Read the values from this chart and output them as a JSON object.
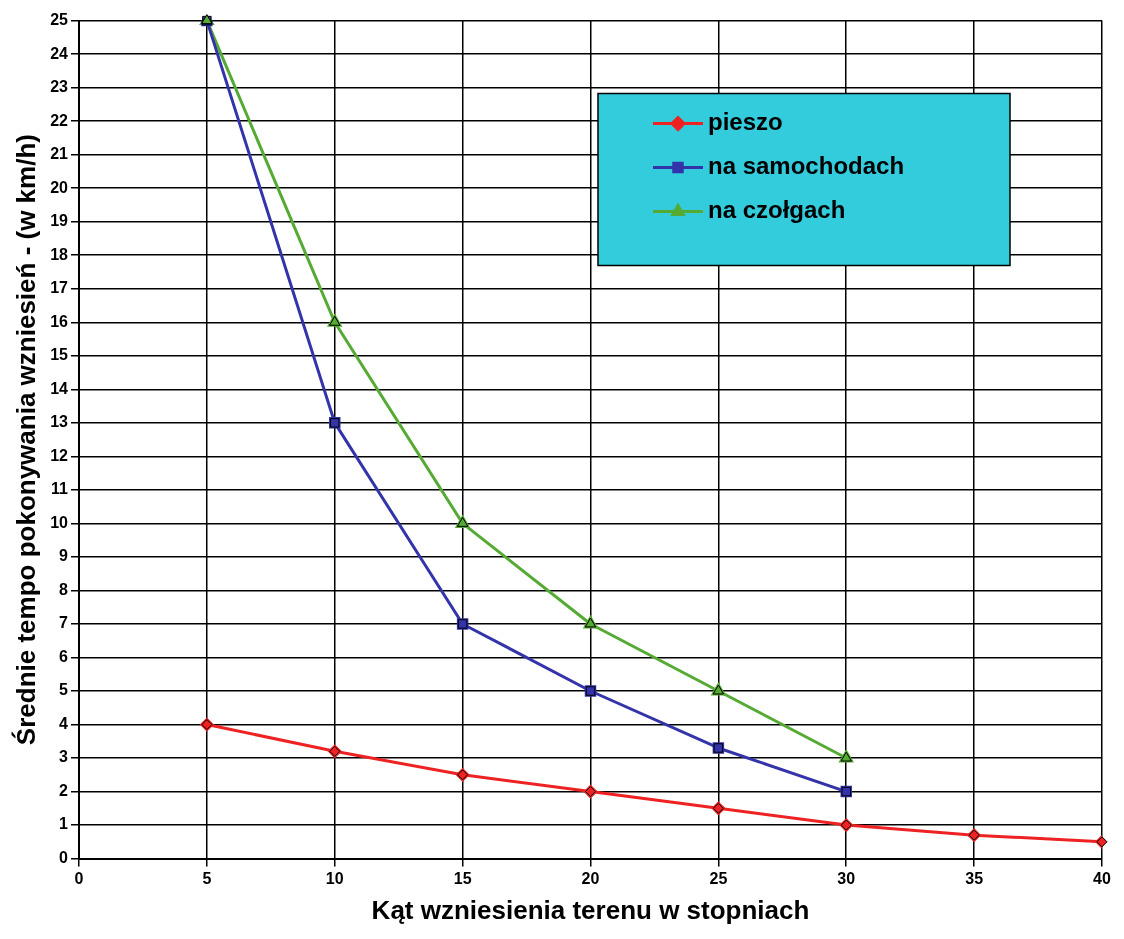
{
  "chart_data": {
    "type": "line",
    "xlabel": "Kąt wzniesienia terenu w stopniach",
    "ylabel": "Średnie tempo pokonywania wzniesień - (w km/h)",
    "xlim": [
      0,
      40
    ],
    "xticks": [
      0,
      5,
      10,
      15,
      20,
      25,
      30,
      35,
      40
    ],
    "ylim": [
      0,
      25
    ],
    "yticks": [
      0,
      1,
      2,
      3,
      4,
      5,
      6,
      7,
      8,
      9,
      10,
      11,
      12,
      13,
      14,
      15,
      16,
      17,
      18,
      19,
      20,
      21,
      22,
      23,
      24,
      25
    ],
    "grid": true,
    "legend": "top right",
    "series": [
      {
        "name": "pieszo",
        "color": "#ee2222",
        "marker": "diamond",
        "x": [
          5,
          10,
          15,
          20,
          25,
          30,
          35,
          40
        ],
        "values": [
          4,
          3.2,
          2.5,
          2,
          1.5,
          1,
          0.7,
          0.5
        ]
      },
      {
        "name": "na samochodach",
        "color": "#3333aa",
        "marker": "square",
        "x": [
          5,
          10,
          15,
          20,
          25,
          30
        ],
        "values": [
          25,
          13,
          7,
          5,
          3.3,
          2
        ]
      },
      {
        "name": "na czołgach",
        "color": "#55aa33",
        "marker": "triangle",
        "x": [
          5,
          10,
          15,
          20,
          25,
          30
        ],
        "values": [
          25,
          16,
          10,
          7,
          5,
          3
        ]
      }
    ]
  }
}
